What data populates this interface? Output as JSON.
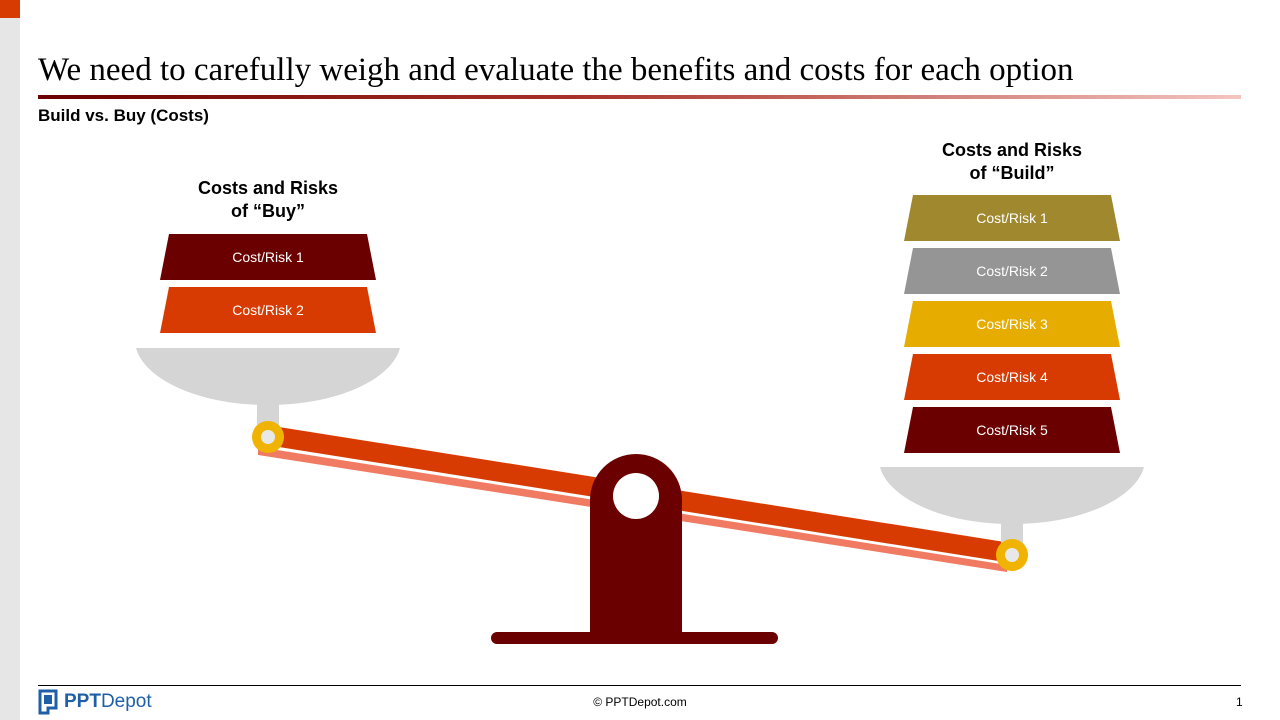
{
  "title": "We need to carefully weigh and evaluate the benefits and costs for each option",
  "subtitle": "Build vs. Buy (Costs)",
  "buy": {
    "heading_line1": "Costs and Risks",
    "heading_line2": "of “Buy”",
    "items": [
      {
        "label": "Cost/Risk 1",
        "color": "#6b0000"
      },
      {
        "label": "Cost/Risk 2",
        "color": "#d83b01"
      }
    ]
  },
  "build": {
    "heading_line1": "Costs and Risks",
    "heading_line2": "of “Build”",
    "items": [
      {
        "label": "Cost/Risk 1",
        "color": "#a0882e"
      },
      {
        "label": "Cost/Risk 2",
        "color": "#959595"
      },
      {
        "label": "Cost/Risk 3",
        "color": "#e6ad00"
      },
      {
        "label": "Cost/Risk 4",
        "color": "#d83b01"
      },
      {
        "label": "Cost/Risk 5",
        "color": "#6b0000"
      }
    ]
  },
  "colors": {
    "beam": "#d83b01",
    "beam_shadow": "#f07b62",
    "stand": "#6b0000",
    "pan": "#d5d5d5",
    "pivot_ring": "#f0b400"
  },
  "footer": {
    "brand_bold": "PPT",
    "brand_rest": "Depot",
    "copyright": "© PPTDepot.com",
    "page_number": "1"
  }
}
